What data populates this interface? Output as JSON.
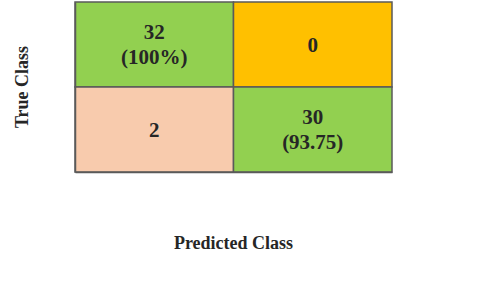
{
  "chart_data": {
    "type": "heatmap",
    "x_label": "Predicted Class",
    "y_label": "True Class",
    "values": [
      [
        32,
        0
      ],
      [
        2,
        30
      ]
    ],
    "value_labels": [
      [
        "32\n(100%)",
        "0"
      ],
      [
        "2",
        "30\n(93.75)"
      ]
    ],
    "colors": [
      [
        "#92d050",
        "#ffc000"
      ],
      [
        "#f8cbad",
        "#92d050"
      ]
    ],
    "data_labels": true,
    "tick_labels": false
  }
}
